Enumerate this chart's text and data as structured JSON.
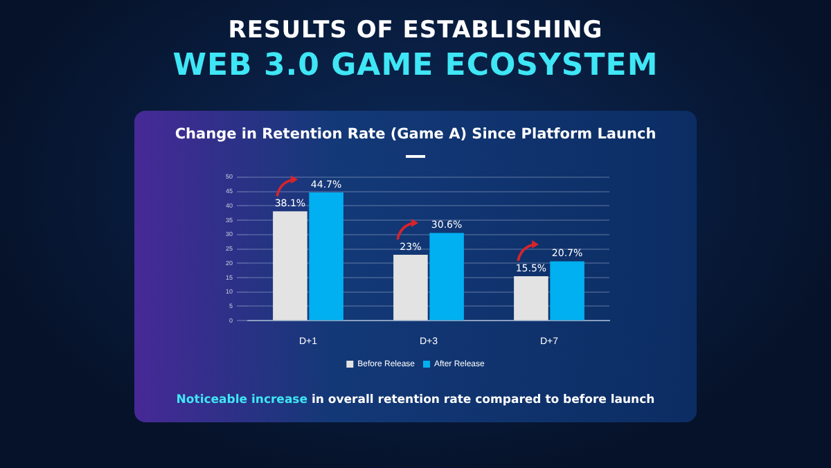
{
  "chart_data": {
    "type": "bar",
    "title": "RESULTS OF ESTABLISHING",
    "subtitle": "WEB 3.0 GAME ECOSYSTEM",
    "annotations": [
      "Change in Retention Rate (Game A) Since Platform Launch",
      "Noticeable increase",
      " in overall retention rate compared to before launch"
    ],
    "categories": [
      "D+1",
      "D+3",
      "D+7"
    ],
    "series": [
      {
        "name": "Before Release",
        "color": "#e3e3e3",
        "values": [
          38.1,
          23,
          15.5
        ],
        "value_labels": [
          "38.1%",
          "23%",
          "15.5%"
        ]
      },
      {
        "name": "After Release",
        "color": "#00b0f0",
        "values": [
          44.7,
          30.6,
          20.7
        ],
        "value_labels": [
          "44.7%",
          "30.6%",
          "20.7%"
        ]
      }
    ],
    "ylim": [
      0,
      50
    ],
    "yticks": [
      0,
      5,
      10,
      15,
      20,
      25,
      30,
      35,
      40,
      45,
      50
    ],
    "grid": "y",
    "legend": "bottom"
  }
}
